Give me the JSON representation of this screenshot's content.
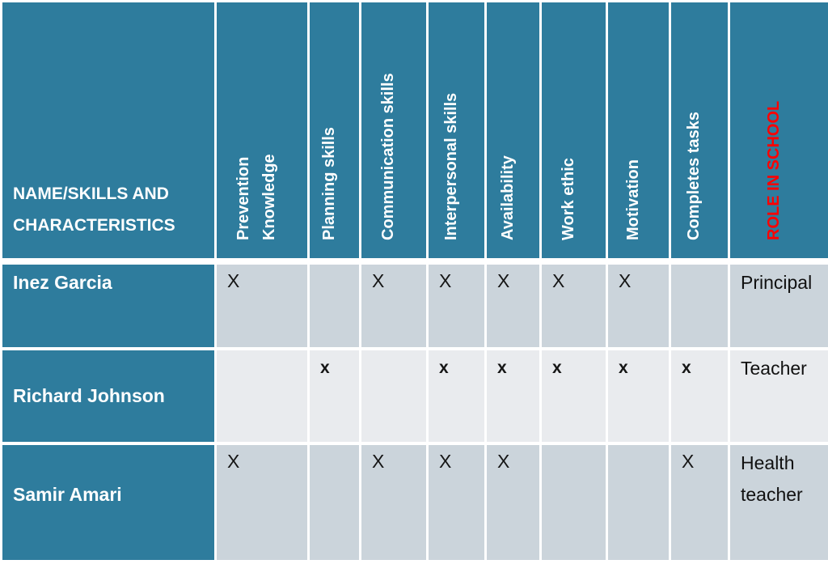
{
  "colors": {
    "header_teal": "#2E7C9D",
    "band_dark": "#CBD4DB",
    "band_light": "#E9EBEE",
    "border_white": "#FFFFFF",
    "header_text": "#FFFFFF",
    "role_header_text": "#FE0000",
    "mark_text": "#161616"
  },
  "table": {
    "corner_header": "NAME/SKILLS AND CHARACTERISTICS",
    "skill_columns": [
      "Prevention\nKnowledge",
      "Planning skills",
      "Communication skills",
      "Interpersonal skills",
      "Availability",
      "Work ethic",
      "Motivation",
      "Completes tasks"
    ],
    "role_column": "ROLE IN SCHOOL",
    "rows": [
      {
        "name": "Inez Garcia",
        "marks": [
          "X",
          "",
          "X",
          "X",
          "X",
          "X",
          "X",
          ""
        ],
        "role": "Principal"
      },
      {
        "name": "Richard Johnson",
        "marks": [
          "",
          "x",
          "",
          "x",
          "x",
          "x",
          "x",
          "x"
        ],
        "role": "Teacher"
      },
      {
        "name": "Samir Amari",
        "marks": [
          "X",
          "",
          "X",
          "X",
          "X",
          "",
          "",
          "X"
        ],
        "role": "Health teacher"
      }
    ]
  },
  "chart_data": {
    "type": "table",
    "title": "",
    "columns": [
      "NAME/SKILLS AND CHARACTERISTICS",
      "Prevention Knowledge",
      "Planning skills",
      "Communication skills",
      "Interpersonal skills",
      "Availability",
      "Work ethic",
      "Motivation",
      "Completes tasks",
      "ROLE IN SCHOOL"
    ],
    "rows": [
      [
        "Inez Garcia",
        "X",
        "",
        "X",
        "X",
        "X",
        "X",
        "X",
        "",
        "Principal"
      ],
      [
        "Richard Johnson",
        "",
        "x",
        "",
        "x",
        "x",
        "x",
        "x",
        "x",
        "Teacher"
      ],
      [
        "Samir Amari",
        "X",
        "",
        "X",
        "X",
        "X",
        "",
        "",
        "X",
        "Health teacher"
      ]
    ]
  }
}
